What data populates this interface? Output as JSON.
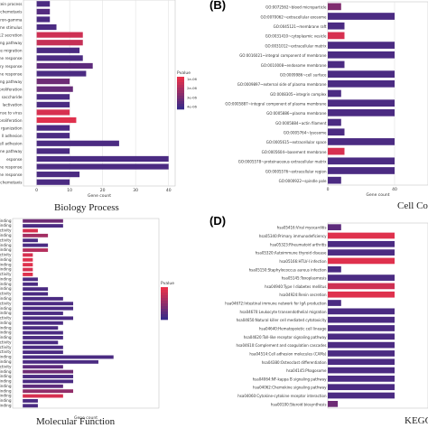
{
  "colors": {
    "high": "#e8314a",
    "low": "#3a2a88"
  },
  "panel_labels": [
    "(B)",
    "(D)"
  ],
  "panel_titles": [
    "Biology Process",
    "Cell Comp",
    "Molecular Function",
    "KEGG"
  ],
  "chart_data": [
    {
      "type": "bar",
      "orientation": "horizontal",
      "title": "Biology Process",
      "xlabel": "Gene count",
      "xticks": [
        "0",
        "10",
        "20",
        "30",
        "40"
      ],
      "xlim": [
        -4,
        42
      ],
      "legend": {
        "title": "Pvalue",
        "labels": [
          "1e-06",
          "2e-06",
          "3e-06",
          "4e-06"
        ],
        "placement": "right"
      },
      "categories": [
        "d protein process",
        "chemotaxis",
        "ron-gamma",
        "ime stimulus",
        "-12 secretion",
        "naling pathway",
        "ocyte migration",
        "ne response",
        "matory response",
        "ane response",
        "ing pathway",
        "proliferation",
        "saccharide",
        "lactivation",
        "sponse to virus",
        "proliferation",
        "rganization",
        "ll adhesion",
        "ell adhesion",
        "ne pathway",
        "esponse",
        "ne response",
        "ne response",
        "chemotaxis"
      ],
      "values": [
        4,
        4,
        4,
        6,
        14,
        14,
        13,
        14,
        17,
        15,
        10,
        11,
        10,
        10,
        10,
        12,
        10,
        10,
        25,
        10,
        40,
        40,
        13,
        10
      ],
      "pvalues": [
        0.1,
        0.15,
        0.1,
        0.1,
        0.85,
        0.8,
        0.1,
        0.1,
        0.2,
        0.1,
        0.3,
        0.25,
        0.1,
        0.1,
        0.9,
        0.95,
        0.1,
        0.1,
        0.1,
        0.1,
        0.1,
        0.1,
        0.1,
        0.1
      ]
    },
    {
      "type": "bar",
      "orientation": "horizontal",
      "title": "Cell Comp",
      "xlabel": "Gene count",
      "xticks": [
        "0",
        "40"
      ],
      "xlim": [
        0,
        60
      ],
      "categories": [
        "GO:0072562~blood microparticle",
        "GO:0070062~extracellular exosome",
        "GO:0045121~membrane raft",
        "GO:0031410~cytoplasmic vesicle",
        "GO:0031012~extracellular matrix",
        "GO:0016021~integral component of membrane",
        "GO:0010008~endosome membrane",
        "GO:0009986~cell surface",
        "GO:0009897~external side of plasma membrane",
        "GO:0008305~integrin complex",
        "GO:0005887~integral component of plasma membrane",
        "GO:0005886~plasma membrane",
        "GO:0005884~actin filament",
        "GO:0005764~lysosome",
        "GO:0005615~extracellular space",
        "GO:0005604~basement membrane",
        "GO:0005578~proteinaceous extracellular matrix",
        "GO:0005576~extracellular region",
        "GO:0000922~spindle pole"
      ],
      "values": [
        8,
        40,
        10,
        10,
        40,
        40,
        10,
        40,
        40,
        8,
        40,
        40,
        8,
        10,
        40,
        10,
        40,
        40,
        8
      ],
      "pvalues": [
        0.4,
        0.1,
        0.1,
        0.9,
        0.1,
        0.1,
        0.1,
        0.1,
        0.1,
        0.1,
        0.1,
        0.1,
        0.1,
        0.1,
        0.1,
        0.9,
        0.1,
        0.1,
        0.1
      ]
    },
    {
      "type": "bar",
      "orientation": "horizontal",
      "title": "Molecular Function",
      "xlabel": "Gene count",
      "xticks": [],
      "xlim": [
        -2,
        27
      ],
      "legend": {
        "title": "Pvalue",
        "labels": [],
        "placement": "right"
      },
      "categories": [
        "n binding",
        "n binding",
        "or activity",
        "n binding",
        "or activity",
        "n binding",
        "n binding",
        "r activity",
        "n binding",
        "n binding",
        "n binding",
        "e activity",
        "n binding",
        "y binding",
        "n binding",
        "or activity",
        "n binding",
        "or activity",
        "r binding",
        "r binding",
        "or activity",
        "n binding",
        "n binding",
        "n binding",
        "n binding",
        "or activity",
        "ng activity",
        "or activity",
        "n binding",
        "n binding",
        "or activity",
        "n binding",
        "n binding",
        "n binding",
        "n binding",
        "n binding",
        "n binding",
        "n binding",
        "n binding"
      ],
      "values": [
        8,
        8,
        3,
        5,
        3,
        5,
        5,
        2,
        2,
        2,
        2,
        2,
        3,
        3,
        5,
        5,
        8,
        10,
        10,
        8,
        10,
        8,
        7,
        8,
        8,
        7,
        8,
        8,
        18,
        15,
        8,
        10,
        10,
        10,
        8,
        10,
        8,
        3,
        3
      ],
      "pvalues": [
        0.3,
        0.1,
        0.9,
        0.6,
        0.1,
        0.1,
        0.7,
        0.9,
        0.95,
        0.95,
        0.9,
        0.95,
        0.1,
        0.1,
        0.1,
        0.1,
        0.1,
        0.1,
        0.1,
        0.1,
        0.1,
        0.1,
        0.1,
        0.1,
        0.1,
        0.1,
        0.1,
        0.1,
        0.1,
        0.1,
        0.2,
        0.3,
        0.1,
        0.1,
        0.2,
        0.5,
        0.9,
        0.1,
        0.1
      ]
    },
    {
      "type": "bar",
      "orientation": "horizontal",
      "title": "KEGG",
      "xlabel": "",
      "xticks": [],
      "xlim": [
        0,
        60
      ],
      "categories": [
        "hsa05416:Viral myocarditis",
        "hsa05340:Primary immunodeficiency",
        "hsa05323:Rheumatoid arthritis",
        "hsa05320:Autoimmune thyroid disease",
        "hsa05166:HTLV-I infection",
        "hsa05150:Staphylococcus aureus infection",
        "hsa05145:Toxoplasmosis",
        "hsa04940:Type I diabetes mellitus",
        "hsa04924:Renin secretion",
        "hsa04672:Intestinal immune network for IgA production",
        "hsa04670:Leukocyte transendothelial migration",
        "hsa04650:Natural killer cell mediated cytotoxicity",
        "hsa04640:Hematopoietic cell lineage",
        "hsa04620:Toll-like receptor signaling pathway",
        "hsa04610:Complement and coagulation cascades",
        "hsa04514:Cell adhesion molecules (CAMs)",
        "hsa04380:Osteoclast differentiation",
        "hsa04145:Phagosome",
        "hsa04064:NF-kappa B signaling pathway",
        "hsa04062:Chemokine signaling pathway",
        "hsa04060:Cytokine-cytokine receptor interaction",
        "hsa00100:Steroid biosynthesis"
      ],
      "values": [
        8,
        40,
        40,
        40,
        40,
        8,
        40,
        40,
        40,
        8,
        40,
        40,
        40,
        40,
        40,
        40,
        40,
        40,
        40,
        40,
        40,
        6
      ],
      "pvalues": [
        0.2,
        0.95,
        0.1,
        0.1,
        0.95,
        0.1,
        0.1,
        0.85,
        0.95,
        0.1,
        0.1,
        0.1,
        0.1,
        0.1,
        0.1,
        0.1,
        0.1,
        0.1,
        0.1,
        0.1,
        0.1,
        0.3
      ]
    }
  ]
}
